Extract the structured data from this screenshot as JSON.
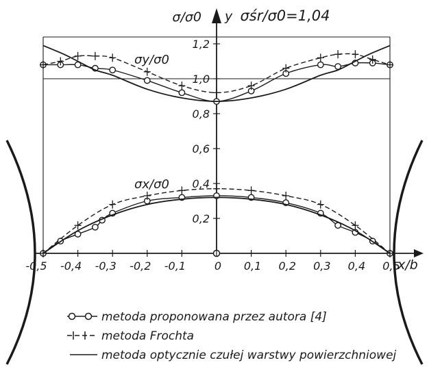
{
  "chart_data": {
    "type": "line",
    "title": "σśr/σ0=1,04",
    "xlabel": "x/b",
    "ylabel": "σ/σ0",
    "y_axis_name": "y",
    "xlim": [
      -0.5,
      0.5
    ],
    "ylim": [
      0,
      1.2
    ],
    "x_ticks": [
      "-0,5",
      "-0,4",
      "-0,3",
      "-0,2",
      "-0,1",
      "0",
      "0,1",
      "0,2",
      "0,3",
      "0,4",
      "0,5"
    ],
    "y_ticks": [
      "0,2",
      "0,4",
      "0,6",
      "0,8",
      "1,0",
      "1,2"
    ],
    "y_tick_values": [
      0.2,
      0.4,
      0.6,
      0.8,
      1.0,
      1.2
    ],
    "grid": false,
    "curve_labels": {
      "sigma_y": "σy/σ0",
      "sigma_x": "σx/σ0"
    },
    "legend": [
      {
        "key": "author",
        "label": "metoda proponowana przez autora [4]"
      },
      {
        "key": "frocht",
        "label": "metoda Frochta"
      },
      {
        "key": "optical",
        "label": "metoda optycznie czułej warstwy powierzchniowej"
      }
    ],
    "series": [
      {
        "key": "author",
        "curve": "sigma_y",
        "x": [
          -0.5,
          -0.45,
          -0.4,
          -0.35,
          -0.3,
          -0.2,
          -0.1,
          0,
          0.1,
          0.2,
          0.3,
          0.35,
          0.4,
          0.45,
          0.5
        ],
        "y": [
          1.08,
          1.08,
          1.08,
          1.06,
          1.05,
          0.99,
          0.92,
          0.87,
          0.93,
          1.03,
          1.08,
          1.07,
          1.09,
          1.09,
          1.08
        ]
      },
      {
        "key": "frocht",
        "curve": "sigma_y",
        "x": [
          -0.5,
          -0.45,
          -0.4,
          -0.35,
          -0.3,
          -0.2,
          -0.1,
          0,
          0.1,
          0.2,
          0.3,
          0.35,
          0.4,
          0.45,
          0.5
        ],
        "y": [
          1.08,
          1.1,
          1.13,
          1.13,
          1.12,
          1.04,
          0.96,
          0.92,
          0.96,
          1.06,
          1.12,
          1.14,
          1.14,
          1.11,
          1.08
        ]
      },
      {
        "key": "optical",
        "curve": "sigma_y",
        "x": [
          -0.5,
          -0.44,
          -0.4,
          -0.35,
          -0.3,
          -0.2,
          -0.1,
          0,
          0.1,
          0.2,
          0.3,
          0.35,
          0.4,
          0.44,
          0.5
        ],
        "y": [
          1.19,
          1.14,
          1.1,
          1.05,
          1.02,
          0.94,
          0.89,
          0.87,
          0.89,
          0.94,
          1.02,
          1.05,
          1.1,
          1.14,
          1.19
        ]
      },
      {
        "key": "author",
        "curve": "sigma_x",
        "x": [
          -0.5,
          -0.45,
          -0.4,
          -0.35,
          -0.33,
          -0.3,
          -0.2,
          -0.1,
          0,
          0.1,
          0.2,
          0.3,
          0.35,
          0.4,
          0.45,
          0.5
        ],
        "y": [
          0,
          0.07,
          0.11,
          0.15,
          0.19,
          0.23,
          0.3,
          0.32,
          0.33,
          0.32,
          0.29,
          0.23,
          0.16,
          0.12,
          0.07,
          0
        ]
      },
      {
        "key": "frocht",
        "curve": "sigma_x",
        "x": [
          -0.5,
          -0.4,
          -0.3,
          -0.2,
          -0.1,
          0,
          0.1,
          0.2,
          0.3,
          0.4,
          0.5
        ],
        "y": [
          0,
          0.16,
          0.28,
          0.33,
          0.36,
          0.37,
          0.36,
          0.33,
          0.28,
          0.16,
          0
        ]
      },
      {
        "key": "optical",
        "curve": "sigma_x",
        "x": [
          -0.5,
          -0.4,
          -0.3,
          -0.2,
          -0.1,
          0,
          0.1,
          0.2,
          0.3,
          0.4,
          0.5
        ],
        "y": [
          0,
          0.13,
          0.22,
          0.28,
          0.31,
          0.32,
          0.31,
          0.28,
          0.22,
          0.13,
          0
        ]
      }
    ]
  }
}
